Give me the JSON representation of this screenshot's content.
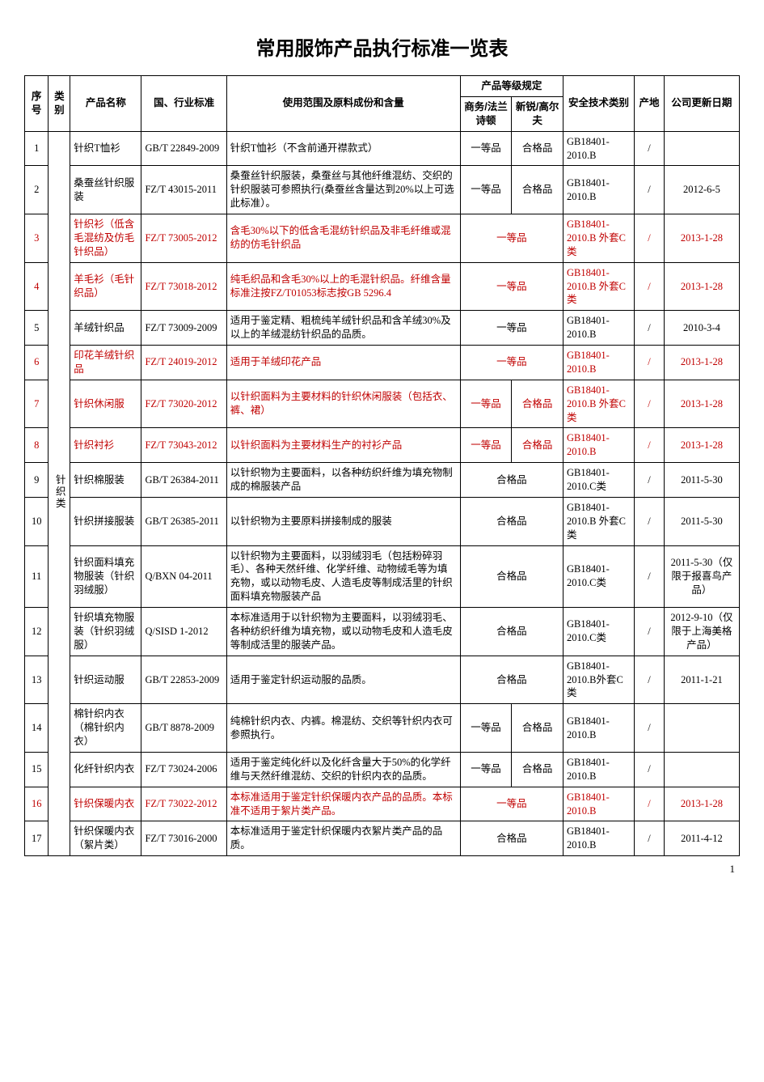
{
  "title": "常用服饰产品执行标准一览表",
  "headers": {
    "seq": "序号",
    "category": "类别",
    "product": "产品名称",
    "standard": "国、行业标准",
    "scope": "使用范围及原料成份和含量",
    "grade_group": "产品等级规定",
    "grade_a": "商务/法兰诗顿",
    "grade_b": "新锐/高尔夫",
    "safety": "安全技术类别",
    "origin": "产地",
    "update": "公司更新日期"
  },
  "category_label": "针织类",
  "page_number": "1",
  "rows": [
    {
      "seq": "1",
      "hl": false,
      "name": "针织T恤衫",
      "std": "GB/T 22849-2009",
      "scope": "针织T恤衫（不含前通开襟款式）",
      "g1": "一等品",
      "g2": "合格品",
      "gmerge": false,
      "safe": "GB18401-2010.B",
      "orig": "/",
      "date": ""
    },
    {
      "seq": "2",
      "hl": false,
      "name": "桑蚕丝针织服　装",
      "std": "FZ/T 43015-2011",
      "scope": "桑蚕丝针织服装，桑蚕丝与其他纤维混纺、交织的针织服装可参照执行(桑蚕丝含量达到20%以上可选此标准）。",
      "g1": "一等品",
      "g2": "合格品",
      "gmerge": false,
      "safe": "GB18401-2010.B",
      "orig": "/",
      "date": "2012-6-5"
    },
    {
      "seq": "3",
      "hl": true,
      "name": "针织衫（低含毛混纺及仿毛针织品）",
      "std": "FZ/T 73005-2012",
      "scope": "含毛30%以下的低含毛混纺针织品及非毛纤维或混纺的仿毛针织品",
      "g1": "一等品",
      "g2": "",
      "gmerge": true,
      "safe": "GB18401-2010.B 外套C类",
      "orig": "/",
      "date": "2013-1-28"
    },
    {
      "seq": "4",
      "hl": true,
      "name": "羊毛衫（毛针织品）",
      "std": "FZ/T 73018-2012",
      "scope": "纯毛织品和含毛30%以上的毛混针织品。纤维含量标准注按FZ/T01053标志按GB 5296.4",
      "g1": "一等品",
      "g2": "",
      "gmerge": true,
      "safe": "GB18401-2010.B 外套C类",
      "orig": "/",
      "date": "2013-1-28"
    },
    {
      "seq": "5",
      "hl": false,
      "name": "羊绒针织品",
      "std": "FZ/T 73009-2009",
      "scope": "适用于鉴定精、粗梳纯羊绒针织品和含羊绒30%及以上的羊绒混纺针织品的品质。",
      "g1": "一等品",
      "g2": "",
      "gmerge": true,
      "safe": "GB18401-2010.B",
      "orig": "/",
      "date": "2010-3-4"
    },
    {
      "seq": "6",
      "hl": true,
      "name": "印花羊绒针织品",
      "std": "FZ/T 24019-2012",
      "scope": "适用于羊绒印花产品",
      "g1": "一等品",
      "g2": "",
      "gmerge": true,
      "safe": "GB18401-2010.B",
      "orig": "/",
      "date": "2013-1-28"
    },
    {
      "seq": "7",
      "hl": true,
      "name": "针织休闲服",
      "std": "FZ/T 73020-2012",
      "scope": "以针织面料为主要材料的针织休闲服装（包括衣、裤、裙）",
      "g1": "一等品",
      "g2": "合格品",
      "gmerge": false,
      "safe": "GB18401-2010.B 外套C类",
      "orig": "/",
      "date": "2013-1-28"
    },
    {
      "seq": "8",
      "hl": true,
      "name": "针织衬衫",
      "std": "FZ/T 73043-2012",
      "scope": "以针织面料为主要材料生产的衬衫产品",
      "g1": "一等品",
      "g2": "合格品",
      "gmerge": false,
      "safe": "GB18401-2010.B",
      "orig": "/",
      "date": "2013-1-28"
    },
    {
      "seq": "9",
      "hl": false,
      "name": "针织棉服装",
      "std": "GB/T 26384-2011",
      "scope": "以针织物为主要面料，以各种纺织纤维为填充物制成的棉服装产品",
      "g1": "合格品",
      "g2": "",
      "gmerge": true,
      "safe": "GB18401-2010.C类",
      "orig": "/",
      "date": "2011-5-30"
    },
    {
      "seq": "10",
      "hl": false,
      "name": "针织拼接服装",
      "std": "GB/T 26385-2011",
      "scope": "以针织物为主要原料拼接制成的服装",
      "g1": "合格品",
      "g2": "",
      "gmerge": true,
      "safe": "GB18401-2010.B 外套C类",
      "orig": "/",
      "date": "2011-5-30"
    },
    {
      "seq": "11",
      "hl": false,
      "name": "针织面料填充物服装（针织羽绒服）",
      "std": "Q/BXN 04-2011",
      "scope": "以针织物为主要面料，以羽绒羽毛（包括粉碎羽毛）、各种天然纤维、化学纤维、动物绒毛等为填充物，或以动物毛皮、人造毛皮等制成活里的针织面料填充物服装产品",
      "g1": "合格品",
      "g2": "",
      "gmerge": true,
      "safe": "GB18401-2010.C类",
      "orig": "/",
      "date": "2011-5-30（仅限于报喜鸟产品）"
    },
    {
      "seq": "12",
      "hl": false,
      "name": "针织填充物服装（针织羽绒服）",
      "std": "Q/SISD 1-2012",
      "scope": "本标准适用于以针织物为主要面料，以羽绒羽毛、各种纺织纤维为填充物，或以动物毛皮和人造毛皮等制成活里的服装产品。",
      "g1": "合格品",
      "g2": "",
      "gmerge": true,
      "safe": "GB18401-2010.C类",
      "orig": "/",
      "date": "2012-9-10（仅限于上海美格产品）"
    },
    {
      "seq": "13",
      "hl": false,
      "name": "针织运动服",
      "std": "GB/T 22853-2009",
      "scope": "适用于鉴定针织运动服的品质。",
      "g1": "合格品",
      "g2": "",
      "gmerge": true,
      "safe": "GB18401-2010.B外套C类",
      "orig": "/",
      "date": "2011-1-21"
    },
    {
      "seq": "14",
      "hl": false,
      "name": "棉针织内衣（棉针织内衣）",
      "std": "GB/T 8878-2009",
      "scope": "纯棉针织内衣、内裤。棉混纺、交织等针织内衣可参照执行。",
      "g1": "一等品",
      "g2": "合格品",
      "gmerge": false,
      "safe": "GB18401-2010.B",
      "orig": "/",
      "date": ""
    },
    {
      "seq": "15",
      "hl": false,
      "name": "化纤针织内衣",
      "std": "FZ/T 73024-2006",
      "scope": "适用于鉴定纯化纤以及化纤含量大于50%的化学纤维与天然纤维混纺、交织的针织内衣的品质。",
      "g1": "一等品",
      "g2": "合格品",
      "gmerge": false,
      "safe": "GB18401-2010.B",
      "orig": "/",
      "date": ""
    },
    {
      "seq": "16",
      "hl": true,
      "name": "针织保暖内衣",
      "std": "FZ/T 73022-2012",
      "scope": "本标准适用于鉴定针织保暖内衣产品的品质。本标准不适用于絮片类产品。",
      "g1": "一等品",
      "g2": "",
      "gmerge": true,
      "safe": "GB18401-2010.B",
      "orig": "/",
      "date": "2013-1-28"
    },
    {
      "seq": "17",
      "hl": false,
      "name": "针织保暖内衣（絮片类）",
      "std": "FZ/T 73016-2000",
      "scope": "本标准适用于鉴定针织保暖内衣絮片类产品的品质。",
      "g1": "合格品",
      "g2": "",
      "gmerge": true,
      "safe": "GB18401-2010.B",
      "orig": "/",
      "date": "2011-4-12"
    }
  ],
  "style": {
    "highlight_color": "#c00000",
    "border_color": "#000000",
    "background": "#ffffff",
    "title_font": "SimHei",
    "body_font": "SimSun",
    "title_fontsize": 24,
    "cell_fontsize": 12.5
  }
}
